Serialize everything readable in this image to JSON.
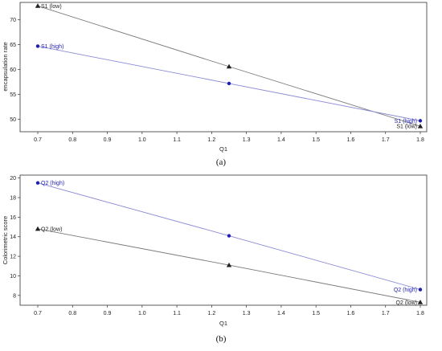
{
  "colors": {
    "low": "#222222",
    "low_line": "#7a7a7a",
    "high": "#1f1fb4",
    "high_line": "#8a8ad4"
  },
  "chart_data": [
    {
      "type": "line",
      "caption": "(a)",
      "xlabel": "Q1",
      "ylabel": "encapsulation rate",
      "xlim": [
        0.7,
        1.8
      ],
      "ylim": [
        47.5,
        73.5
      ],
      "x_ticks": [
        0.7,
        0.8,
        0.9,
        1.0,
        1.1,
        1.2,
        1.3,
        1.4,
        1.5,
        1.6,
        1.7,
        1.8
      ],
      "x_tick_labels": [
        "0.7",
        "0.8",
        "0.9",
        "1.0",
        "1.1",
        "1.2",
        "1.3",
        "1.4",
        "1.5",
        "1.6",
        "1.7",
        "1.8"
      ],
      "y_ticks": [
        50,
        55,
        60,
        65,
        70
      ],
      "y_tick_labels": [
        "50",
        "55",
        "60",
        "65",
        "70"
      ],
      "grid": false,
      "series": [
        {
          "name": "S1 (low)",
          "marker": "triangle",
          "x": [
            0.7,
            1.25,
            1.8
          ],
          "y": [
            72.8,
            60.6,
            48.6
          ],
          "label_start": "S1 (low)",
          "label_end": "S1 (low)"
        },
        {
          "name": "S1 (high)",
          "marker": "circle",
          "x": [
            0.7,
            1.25,
            1.8
          ],
          "y": [
            64.7,
            57.2,
            49.7
          ],
          "label_start": "S1 (high)",
          "label_end": "S1 (high)"
        }
      ]
    },
    {
      "type": "line",
      "caption": "(b)",
      "xlabel": "Q1",
      "ylabel": "Colorimetric score",
      "xlim": [
        0.7,
        1.8
      ],
      "ylim": [
        7.0,
        20.3
      ],
      "x_ticks": [
        0.7,
        0.8,
        0.9,
        1.0,
        1.1,
        1.2,
        1.3,
        1.4,
        1.5,
        1.6,
        1.7,
        1.8
      ],
      "x_tick_labels": [
        "0.7",
        "0.8",
        "0.9",
        "1.0",
        "1.1",
        "1.2",
        "1.3",
        "1.4",
        "1.5",
        "1.6",
        "1.7",
        "1.8"
      ],
      "y_ticks": [
        8,
        10,
        12,
        14,
        16,
        18,
        20
      ],
      "y_tick_labels": [
        "8",
        "10",
        "12",
        "14",
        "16",
        "18",
        "20"
      ],
      "grid": false,
      "series": [
        {
          "name": "Q2 (high)",
          "marker": "circle",
          "x": [
            0.7,
            1.25,
            1.8
          ],
          "y": [
            19.5,
            14.1,
            8.6
          ],
          "label_start": "Q2 (high)",
          "label_end": "Q2 (high)"
        },
        {
          "name": "Q2 (low)",
          "marker": "triangle",
          "x": [
            0.7,
            1.25,
            1.8
          ],
          "y": [
            14.8,
            11.1,
            7.3
          ],
          "label_start": "Q2 (low)",
          "label_end": "Q2 (low)"
        }
      ]
    }
  ]
}
